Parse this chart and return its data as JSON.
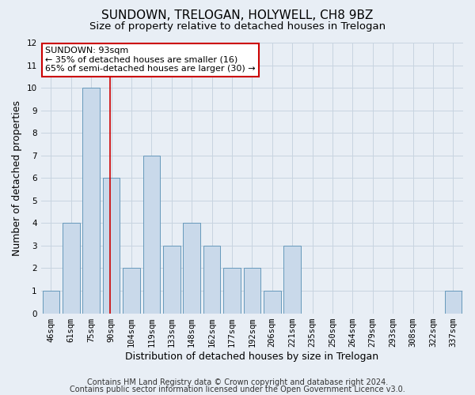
{
  "title": "SUNDOWN, TRELOGAN, HOLYWELL, CH8 9BZ",
  "subtitle": "Size of property relative to detached houses in Trelogan",
  "xlabel": "Distribution of detached houses by size in Trelogan",
  "ylabel": "Number of detached properties",
  "footnote1": "Contains HM Land Registry data © Crown copyright and database right 2024.",
  "footnote2": "Contains public sector information licensed under the Open Government Licence v3.0.",
  "categories": [
    "46sqm",
    "61sqm",
    "75sqm",
    "90sqm",
    "104sqm",
    "119sqm",
    "133sqm",
    "148sqm",
    "162sqm",
    "177sqm",
    "192sqm",
    "206sqm",
    "221sqm",
    "235sqm",
    "250sqm",
    "264sqm",
    "279sqm",
    "293sqm",
    "308sqm",
    "322sqm",
    "337sqm"
  ],
  "values": [
    1,
    4,
    10,
    6,
    2,
    7,
    3,
    4,
    3,
    2,
    2,
    1,
    3,
    0,
    0,
    0,
    0,
    0,
    0,
    0,
    1
  ],
  "bar_color": "#c9d9ea",
  "bar_edge_color": "#6699bb",
  "vline_x_index": 3,
  "vline_color": "#cc0000",
  "annotation_title": "SUNDOWN: 93sqm",
  "annotation_line1": "← 35% of detached houses are smaller (16)",
  "annotation_line2": "65% of semi-detached houses are larger (30) →",
  "annotation_box_color": "#ffffff",
  "annotation_box_edge": "#cc0000",
  "ylim": [
    0,
    12
  ],
  "yticks": [
    0,
    1,
    2,
    3,
    4,
    5,
    6,
    7,
    8,
    9,
    10,
    11,
    12
  ],
  "grid_color": "#c8d4e0",
  "background_color": "#e8eef5",
  "title_fontsize": 11,
  "subtitle_fontsize": 9.5,
  "axis_label_fontsize": 9,
  "tick_fontsize": 7.5,
  "annotation_fontsize": 8,
  "footnote_fontsize": 7
}
